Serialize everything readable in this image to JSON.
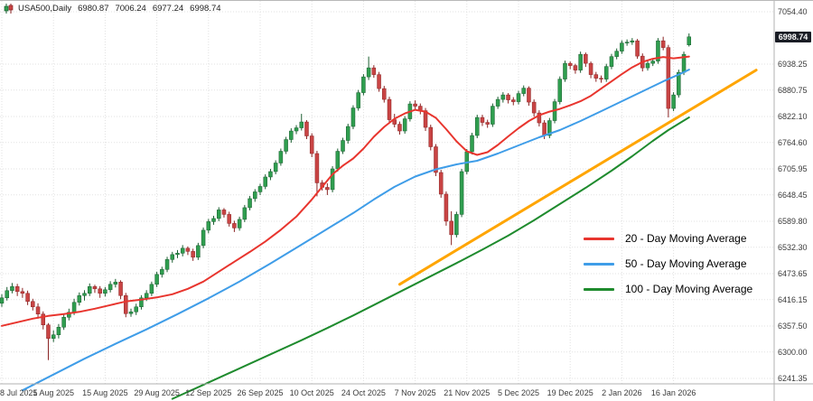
{
  "symbol_bar": {
    "symbol": "USA500,Daily",
    "open": "6980.87",
    "high": "7006.24",
    "low": "6977.24",
    "close": "6998.74"
  },
  "legend": {
    "items": [
      {
        "label": "20 - Day Moving Average",
        "color": "#e8352e"
      },
      {
        "label": "50 - Day Moving Average",
        "color": "#3f9de8"
      },
      {
        "label": "100 - Day Moving Average",
        "color": "#1f8b2e"
      }
    ]
  },
  "ui_colors": {
    "badge_bg": "#1a1d25",
    "badge_text": "#ffffff"
  },
  "chart_data": {
    "type": "candlestick",
    "symbol": "USA500",
    "timeframe": "Daily",
    "current_price": "6998.74",
    "y_axis": {
      "max": 7054.4,
      "min": 6241.35,
      "labels": [
        "7054.40",
        "6938.25",
        "6880.75",
        "6822.10",
        "6764.60",
        "6705.95",
        "6648.45",
        "6589.80",
        "6532.30",
        "6473.65",
        "6416.15",
        "6357.50",
        "6300.00",
        "6241.35"
      ]
    },
    "tick_dates": [
      "8 Jul 2025",
      "1 Aug 2025",
      "15 Aug 2025",
      "29 Aug 2025",
      "12 Sep 2025",
      "26 Sep 2025",
      "10 Oct 2025",
      "24 Oct 2025",
      "7 Nov 2025",
      "21 Nov 2025",
      "5 Dec 2025",
      "19 Dec 2025",
      "2 Jan 2026",
      "16 Jan 2026"
    ],
    "candles_per_tick": 10,
    "colors": {
      "up": "#2f9e4f",
      "up_stroke": "#1a5e30",
      "down": "#c94444",
      "down_stroke": "#8a2323",
      "grid": "#e2e2e2"
    },
    "candles": [
      [
        6408,
        6428,
        6400,
        6420
      ],
      [
        6420,
        6444,
        6414,
        6436
      ],
      [
        6436,
        6453,
        6430,
        6445
      ],
      [
        6445,
        6451,
        6424,
        6434
      ],
      [
        6434,
        6442,
        6420,
        6430
      ],
      [
        6430,
        6436,
        6404,
        6412
      ],
      [
        6412,
        6418,
        6392,
        6400
      ],
      [
        6400,
        6408,
        6374,
        6384
      ],
      [
        6384,
        6390,
        6350,
        6360
      ],
      [
        6360,
        6364,
        6282,
        6330
      ],
      [
        6330,
        6348,
        6322,
        6338
      ],
      [
        6338,
        6362,
        6330,
        6355
      ],
      [
        6355,
        6384,
        6349,
        6377
      ],
      [
        6377,
        6396,
        6370,
        6388
      ],
      [
        6388,
        6418,
        6382,
        6410
      ],
      [
        6410,
        6432,
        6403,
        6425
      ],
      [
        6425,
        6437,
        6414,
        6430
      ],
      [
        6430,
        6452,
        6424,
        6445
      ],
      [
        6445,
        6449,
        6431,
        6440
      ],
      [
        6440,
        6446,
        6420,
        6430
      ],
      [
        6430,
        6444,
        6423,
        6438
      ],
      [
        6438,
        6457,
        6432,
        6450
      ],
      [
        6450,
        6462,
        6443,
        6455
      ],
      [
        6455,
        6459,
        6417,
        6425
      ],
      [
        6425,
        6431,
        6377,
        6385
      ],
      [
        6385,
        6396,
        6378,
        6389
      ],
      [
        6389,
        6407,
        6382,
        6400
      ],
      [
        6400,
        6426,
        6394,
        6420
      ],
      [
        6420,
        6437,
        6413,
        6430
      ],
      [
        6430,
        6456,
        6424,
        6450
      ],
      [
        6450,
        6478,
        6444,
        6472
      ],
      [
        6472,
        6489,
        6465,
        6483
      ],
      [
        6483,
        6511,
        6477,
        6505
      ],
      [
        6505,
        6522,
        6498,
        6516
      ],
      [
        6516,
        6526,
        6508,
        6519
      ],
      [
        6519,
        6537,
        6512,
        6530
      ],
      [
        6530,
        6534,
        6515,
        6523
      ],
      [
        6523,
        6529,
        6502,
        6510
      ],
      [
        6510,
        6542,
        6504,
        6536
      ],
      [
        6536,
        6576,
        6530,
        6570
      ],
      [
        6570,
        6595,
        6563,
        6589
      ],
      [
        6589,
        6602,
        6582,
        6596
      ],
      [
        6596,
        6621,
        6590,
        6615
      ],
      [
        6615,
        6619,
        6598,
        6605
      ],
      [
        6605,
        6611,
        6578,
        6585
      ],
      [
        6585,
        6591,
        6566,
        6575
      ],
      [
        6575,
        6600,
        6569,
        6594
      ],
      [
        6594,
        6626,
        6588,
        6620
      ],
      [
        6620,
        6646,
        6614,
        6640
      ],
      [
        6640,
        6661,
        6633,
        6655
      ],
      [
        6655,
        6673,
        6648,
        6667
      ],
      [
        6667,
        6694,
        6661,
        6688
      ],
      [
        6688,
        6706,
        6681,
        6700
      ],
      [
        6700,
        6725,
        6694,
        6719
      ],
      [
        6719,
        6751,
        6713,
        6745
      ],
      [
        6745,
        6777,
        6739,
        6771
      ],
      [
        6771,
        6796,
        6764,
        6790
      ],
      [
        6790,
        6803,
        6783,
        6797
      ],
      [
        6797,
        6828,
        6791,
        6810
      ],
      [
        6810,
        6814,
        6772,
        6779
      ],
      [
        6779,
        6785,
        6732,
        6740
      ],
      [
        6740,
        6746,
        6645,
        6675
      ],
      [
        6675,
        6681,
        6658,
        6665
      ],
      [
        6665,
        6674,
        6648,
        6660
      ],
      [
        6660,
        6712,
        6654,
        6706
      ],
      [
        6706,
        6751,
        6700,
        6745
      ],
      [
        6745,
        6775,
        6739,
        6769
      ],
      [
        6769,
        6806,
        6762,
        6800
      ],
      [
        6800,
        6847,
        6794,
        6841
      ],
      [
        6841,
        6881,
        6835,
        6875
      ],
      [
        6875,
        6916,
        6869,
        6910
      ],
      [
        6910,
        6955,
        6903,
        6930
      ],
      [
        6930,
        6936,
        6908,
        6915
      ],
      [
        6915,
        6921,
        6877,
        6884
      ],
      [
        6884,
        6890,
        6853,
        6860
      ],
      [
        6860,
        6866,
        6806,
        6815
      ],
      [
        6815,
        6828,
        6798,
        6805
      ],
      [
        6805,
        6811,
        6782,
        6790
      ],
      [
        6790,
        6823,
        6784,
        6817
      ],
      [
        6817,
        6856,
        6811,
        6850
      ],
      [
        6850,
        6858,
        6838,
        6845
      ],
      [
        6845,
        6851,
        6827,
        6835
      ],
      [
        6835,
        6841,
        6790,
        6798
      ],
      [
        6798,
        6804,
        6747,
        6755
      ],
      [
        6755,
        6761,
        6690,
        6698
      ],
      [
        6698,
        6704,
        6642,
        6650
      ],
      [
        6650,
        6656,
        6580,
        6590
      ],
      [
        6590,
        6612,
        6537,
        6560
      ],
      [
        6560,
        6611,
        6554,
        6605
      ],
      [
        6605,
        6706,
        6599,
        6700
      ],
      [
        6700,
        6750,
        6694,
        6744
      ],
      [
        6744,
        6786,
        6738,
        6780
      ],
      [
        6780,
        6826,
        6774,
        6820
      ],
      [
        6820,
        6826,
        6801,
        6809
      ],
      [
        6809,
        6815,
        6797,
        6805
      ],
      [
        6805,
        6851,
        6799,
        6845
      ],
      [
        6845,
        6866,
        6839,
        6860
      ],
      [
        6860,
        6876,
        6853,
        6870
      ],
      [
        6870,
        6874,
        6851,
        6859
      ],
      [
        6859,
        6865,
        6847,
        6855
      ],
      [
        6855,
        6879,
        6849,
        6873
      ],
      [
        6873,
        6891,
        6867,
        6885
      ],
      [
        6885,
        6889,
        6846,
        6854
      ],
      [
        6854,
        6860,
        6822,
        6830
      ],
      [
        6830,
        6836,
        6800,
        6808
      ],
      [
        6808,
        6814,
        6772,
        6780
      ],
      [
        6780,
        6819,
        6774,
        6813
      ],
      [
        6813,
        6861,
        6807,
        6855
      ],
      [
        6855,
        6911,
        6849,
        6905
      ],
      [
        6905,
        6946,
        6899,
        6940
      ],
      [
        6940,
        6944,
        6927,
        6935
      ],
      [
        6935,
        6939,
        6917,
        6925
      ],
      [
        6925,
        6966,
        6919,
        6960
      ],
      [
        6960,
        6964,
        6932,
        6940
      ],
      [
        6940,
        6944,
        6907,
        6915
      ],
      [
        6915,
        6921,
        6899,
        6907
      ],
      [
        6907,
        6913,
        6897,
        6905
      ],
      [
        6905,
        6939,
        6899,
        6933
      ],
      [
        6933,
        6961,
        6927,
        6955
      ],
      [
        6955,
        6973,
        6949,
        6967
      ],
      [
        6967,
        6991,
        6961,
        6985
      ],
      [
        6985,
        6993,
        6979,
        6987
      ],
      [
        6987,
        6996,
        6981,
        6990
      ],
      [
        6990,
        6994,
        6950,
        6956
      ],
      [
        6956,
        6962,
        6922,
        6930
      ],
      [
        6930,
        6946,
        6924,
        6940
      ],
      [
        6940,
        6951,
        6934,
        6945
      ],
      [
        6945,
        6996,
        6939,
        6990
      ],
      [
        6990,
        6999,
        6969,
        6975
      ],
      [
        6975,
        6981,
        6820,
        6840
      ],
      [
        6840,
        6876,
        6834,
        6870
      ],
      [
        6870,
        6926,
        6864,
        6920
      ],
      [
        6920,
        6966,
        6914,
        6960
      ],
      [
        6980.87,
        7006.24,
        6977.24,
        6998.74
      ]
    ],
    "series": [
      {
        "name": "20 - Day Moving Average",
        "color": "#e8352e",
        "points": [
          [
            0,
            6358
          ],
          [
            3,
            6366
          ],
          [
            6,
            6374
          ],
          [
            9,
            6380
          ],
          [
            12,
            6384
          ],
          [
            15,
            6389
          ],
          [
            18,
            6396
          ],
          [
            21,
            6404
          ],
          [
            24,
            6412
          ],
          [
            27,
            6416
          ],
          [
            30,
            6421
          ],
          [
            33,
            6428
          ],
          [
            36,
            6440
          ],
          [
            39,
            6456
          ],
          [
            42,
            6478
          ],
          [
            45,
            6500
          ],
          [
            48,
            6522
          ],
          [
            51,
            6545
          ],
          [
            54,
            6571
          ],
          [
            57,
            6600
          ],
          [
            60,
            6638
          ],
          [
            62,
            6666
          ],
          [
            64,
            6694
          ],
          [
            66,
            6713
          ],
          [
            68,
            6729
          ],
          [
            70,
            6751
          ],
          [
            72,
            6777
          ],
          [
            74,
            6799
          ],
          [
            76,
            6817
          ],
          [
            78,
            6829
          ],
          [
            80,
            6837
          ],
          [
            82,
            6833
          ],
          [
            84,
            6819
          ],
          [
            86,
            6794
          ],
          [
            88,
            6767
          ],
          [
            90,
            6745
          ],
          [
            92,
            6737
          ],
          [
            94,
            6743
          ],
          [
            96,
            6759
          ],
          [
            98,
            6778
          ],
          [
            100,
            6796
          ],
          [
            102,
            6812
          ],
          [
            104,
            6825
          ],
          [
            106,
            6833
          ],
          [
            108,
            6839
          ],
          [
            110,
            6847
          ],
          [
            112,
            6856
          ],
          [
            114,
            6868
          ],
          [
            116,
            6884
          ],
          [
            118,
            6900
          ],
          [
            120,
            6916
          ],
          [
            122,
            6931
          ],
          [
            124,
            6943
          ],
          [
            126,
            6950
          ],
          [
            128,
            6954
          ],
          [
            130,
            6951
          ],
          [
            133,
            6955
          ]
        ]
      },
      {
        "name": "50 - Day Moving Average",
        "color": "#3f9de8",
        "points": [
          [
            4,
            6215
          ],
          [
            10,
            6250
          ],
          [
            16,
            6285
          ],
          [
            22,
            6318
          ],
          [
            28,
            6350
          ],
          [
            34,
            6384
          ],
          [
            40,
            6419
          ],
          [
            46,
            6456
          ],
          [
            52,
            6496
          ],
          [
            58,
            6538
          ],
          [
            64,
            6580
          ],
          [
            68,
            6608
          ],
          [
            72,
            6638
          ],
          [
            76,
            6666
          ],
          [
            80,
            6689
          ],
          [
            84,
            6705
          ],
          [
            88,
            6716
          ],
          [
            92,
            6724
          ],
          [
            96,
            6740
          ],
          [
            100,
            6758
          ],
          [
            104,
            6776
          ],
          [
            108,
            6792
          ],
          [
            112,
            6812
          ],
          [
            116,
            6834
          ],
          [
            120,
            6856
          ],
          [
            124,
            6878
          ],
          [
            128,
            6900
          ],
          [
            131,
            6915
          ],
          [
            133,
            6926
          ]
        ]
      },
      {
        "name": "100 - Day Moving Average",
        "color": "#1f8b2e",
        "points": [
          [
            33,
            6196
          ],
          [
            38,
            6222
          ],
          [
            43,
            6248
          ],
          [
            48,
            6274
          ],
          [
            53,
            6300
          ],
          [
            58,
            6326
          ],
          [
            63,
            6353
          ],
          [
            68,
            6381
          ],
          [
            73,
            6410
          ],
          [
            78,
            6439
          ],
          [
            83,
            6468
          ],
          [
            88,
            6497
          ],
          [
            93,
            6527
          ],
          [
            98,
            6558
          ],
          [
            103,
            6592
          ],
          [
            108,
            6628
          ],
          [
            113,
            6664
          ],
          [
            118,
            6702
          ],
          [
            122,
            6734
          ],
          [
            126,
            6768
          ],
          [
            129,
            6792
          ],
          [
            131,
            6806
          ],
          [
            133,
            6820
          ]
        ]
      }
    ],
    "trendline": {
      "color": "#ffa500",
      "points": [
        [
          77,
          6450
        ],
        [
          146,
          6925
        ]
      ]
    }
  }
}
